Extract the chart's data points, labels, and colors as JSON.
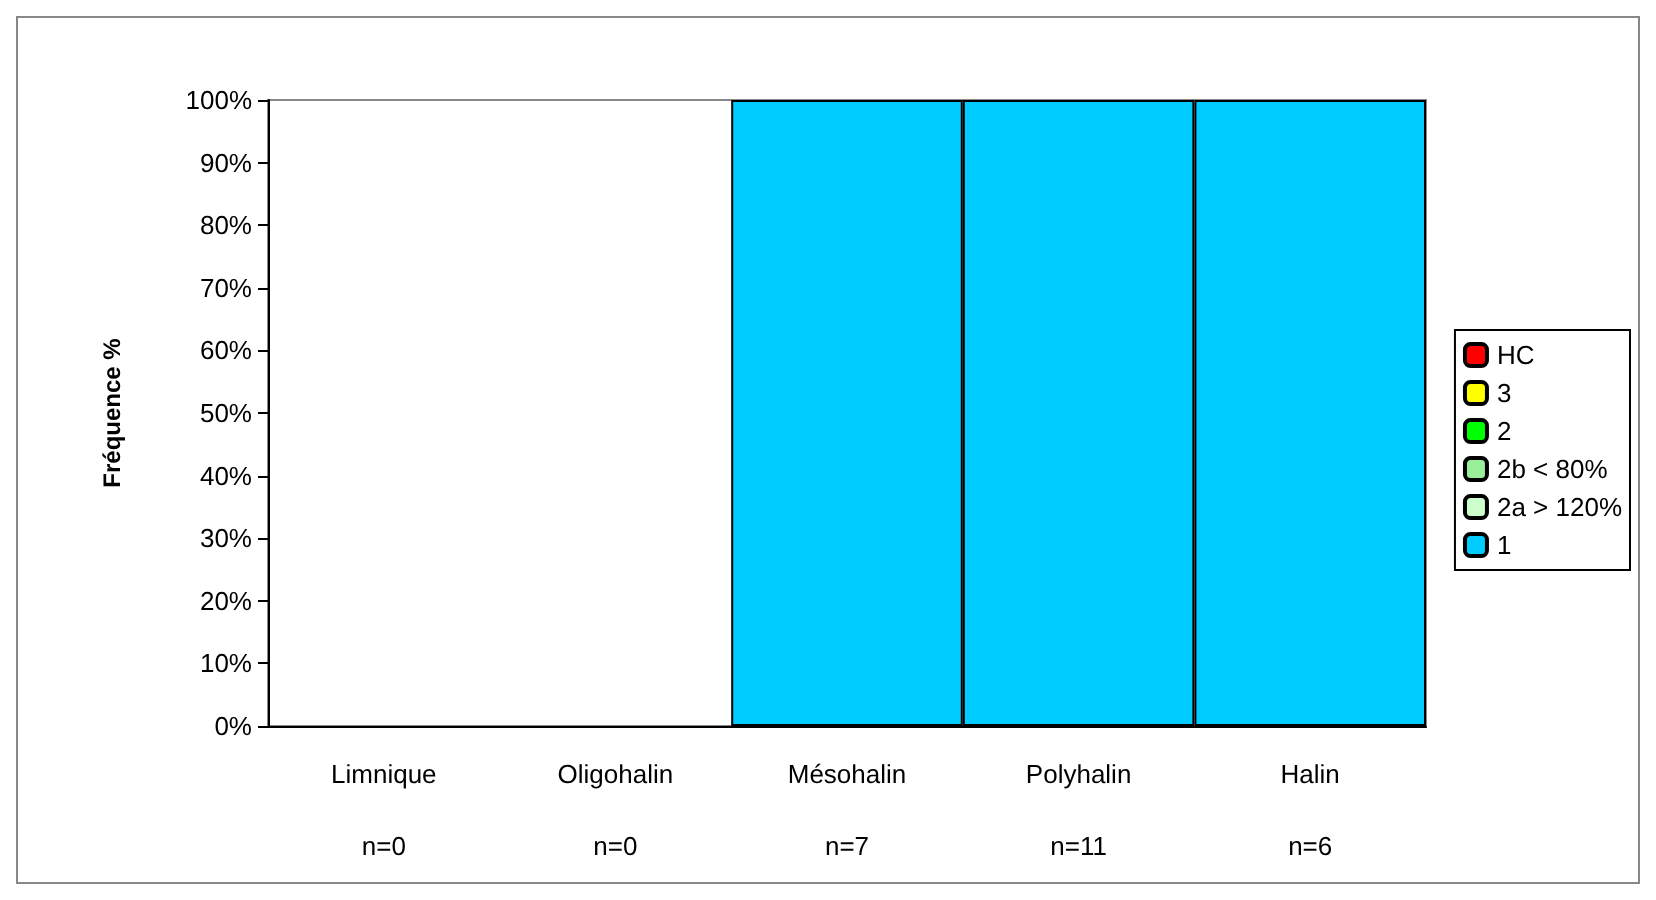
{
  "chart_data": {
    "type": "bar",
    "stacked": true,
    "ylabel": "Fréquence %",
    "categories": [
      "Limnique\nn=0",
      "Oligohalin\nn=0",
      "Mésohalin\nn=7",
      "Polyhalin\nn=11",
      "Halin\nn=6"
    ],
    "series": [
      {
        "name": "1",
        "color": "#00ccff",
        "values": [
          0,
          0,
          100,
          100,
          100
        ]
      },
      {
        "name": "2a > 120%",
        "color": "#ccffcc",
        "values": [
          0,
          0,
          0,
          0,
          0
        ]
      },
      {
        "name": "2b < 80%",
        "color": "#99ee99",
        "values": [
          0,
          0,
          0,
          0,
          0
        ]
      },
      {
        "name": "2",
        "color": "#00ff00",
        "values": [
          0,
          0,
          0,
          0,
          0
        ]
      },
      {
        "name": "3",
        "color": "#ffff00",
        "values": [
          0,
          0,
          0,
          0,
          0
        ]
      },
      {
        "name": "HC",
        "color": "#ff0000",
        "values": [
          0,
          0,
          0,
          0,
          0
        ]
      }
    ],
    "ylim": [
      0,
      100
    ],
    "yticks": [
      {
        "value": 0,
        "label": "0%"
      },
      {
        "value": 10,
        "label": "10%"
      },
      {
        "value": 20,
        "label": "20%"
      },
      {
        "value": 30,
        "label": "30%"
      },
      {
        "value": 40,
        "label": "40%"
      },
      {
        "value": 50,
        "label": "50%"
      },
      {
        "value": 60,
        "label": "60%"
      },
      {
        "value": 70,
        "label": "70%"
      },
      {
        "value": 80,
        "label": "80%"
      },
      {
        "value": 90,
        "label": "90%"
      },
      {
        "value": 100,
        "label": "100%"
      }
    ],
    "grid": false,
    "legend": "right"
  }
}
